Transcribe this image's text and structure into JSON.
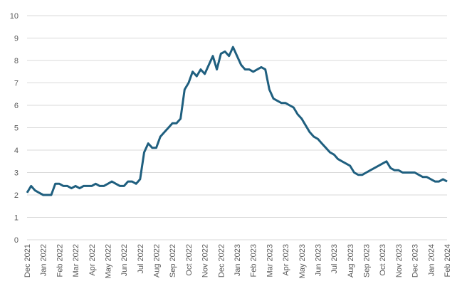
{
  "chart_data": {
    "type": "line",
    "categories": [
      "Dec 2021",
      null,
      null,
      null,
      "Jan 2022",
      null,
      null,
      null,
      "Feb 2022",
      null,
      null,
      null,
      "Mar 2022",
      null,
      null,
      null,
      "Apr 2022",
      null,
      null,
      null,
      "May 2022",
      null,
      null,
      null,
      "Jun 2022",
      null,
      null,
      null,
      "Jul 2022",
      null,
      null,
      null,
      "Aug 2022",
      null,
      null,
      null,
      "Sep 2022",
      null,
      null,
      null,
      "Oct 2022",
      null,
      null,
      null,
      "Nov 2022",
      null,
      null,
      null,
      "Dec 2022",
      null,
      null,
      null,
      "Jan 2023",
      null,
      null,
      null,
      "Feb 2023",
      null,
      null,
      null,
      "Mar 2023",
      null,
      null,
      null,
      "Apr 2023",
      null,
      null,
      null,
      "May 2023",
      null,
      null,
      null,
      "Jun 2023",
      null,
      null,
      null,
      "Jul 2023",
      null,
      null,
      null,
      "Aug 2023",
      null,
      null,
      null,
      "Sep 2023",
      null,
      null,
      null,
      "Oct 2023",
      null,
      null,
      null,
      "Nov 2023",
      null,
      null,
      null,
      "Dec 2023",
      null,
      null,
      null,
      "Jan 2024",
      null,
      null,
      null,
      "Feb 2024"
    ],
    "series": [
      {
        "color": "#1f5f7f",
        "values": [
          2.1,
          2.4,
          2.2,
          2.1,
          2.0,
          2.0,
          2.0,
          2.5,
          2.5,
          2.4,
          2.4,
          2.3,
          2.4,
          2.3,
          2.4,
          2.4,
          2.4,
          2.5,
          2.4,
          2.4,
          2.5,
          2.6,
          2.5,
          2.4,
          2.4,
          2.6,
          2.6,
          2.5,
          2.7,
          3.9,
          4.3,
          4.1,
          4.1,
          4.6,
          4.8,
          5.0,
          5.2,
          5.2,
          5.4,
          6.7,
          7.0,
          7.5,
          7.3,
          7.6,
          7.4,
          7.8,
          8.2,
          7.6,
          8.3,
          8.4,
          8.2,
          8.6,
          8.2,
          7.8,
          7.6,
          7.6,
          7.5,
          7.6,
          7.7,
          7.6,
          6.7,
          6.3,
          6.2,
          6.1,
          6.1,
          6.0,
          5.9,
          5.6,
          5.4,
          5.1,
          4.8,
          4.6,
          4.5,
          4.3,
          4.1,
          3.9,
          3.8,
          3.6,
          3.5,
          3.4,
          3.3,
          3.0,
          2.9,
          2.9,
          3.0,
          3.1,
          3.2,
          3.3,
          3.4,
          3.5,
          3.2,
          3.1,
          3.1,
          3.0,
          3.0,
          3.0,
          3.0,
          2.9,
          2.8,
          2.8,
          2.7,
          2.6,
          2.6,
          2.7,
          2.6
        ]
      }
    ],
    "ylim": [
      0,
      10
    ],
    "yticks": [
      0,
      1,
      2,
      3,
      4,
      5,
      6,
      7,
      8,
      9,
      10
    ],
    "grid": true
  }
}
